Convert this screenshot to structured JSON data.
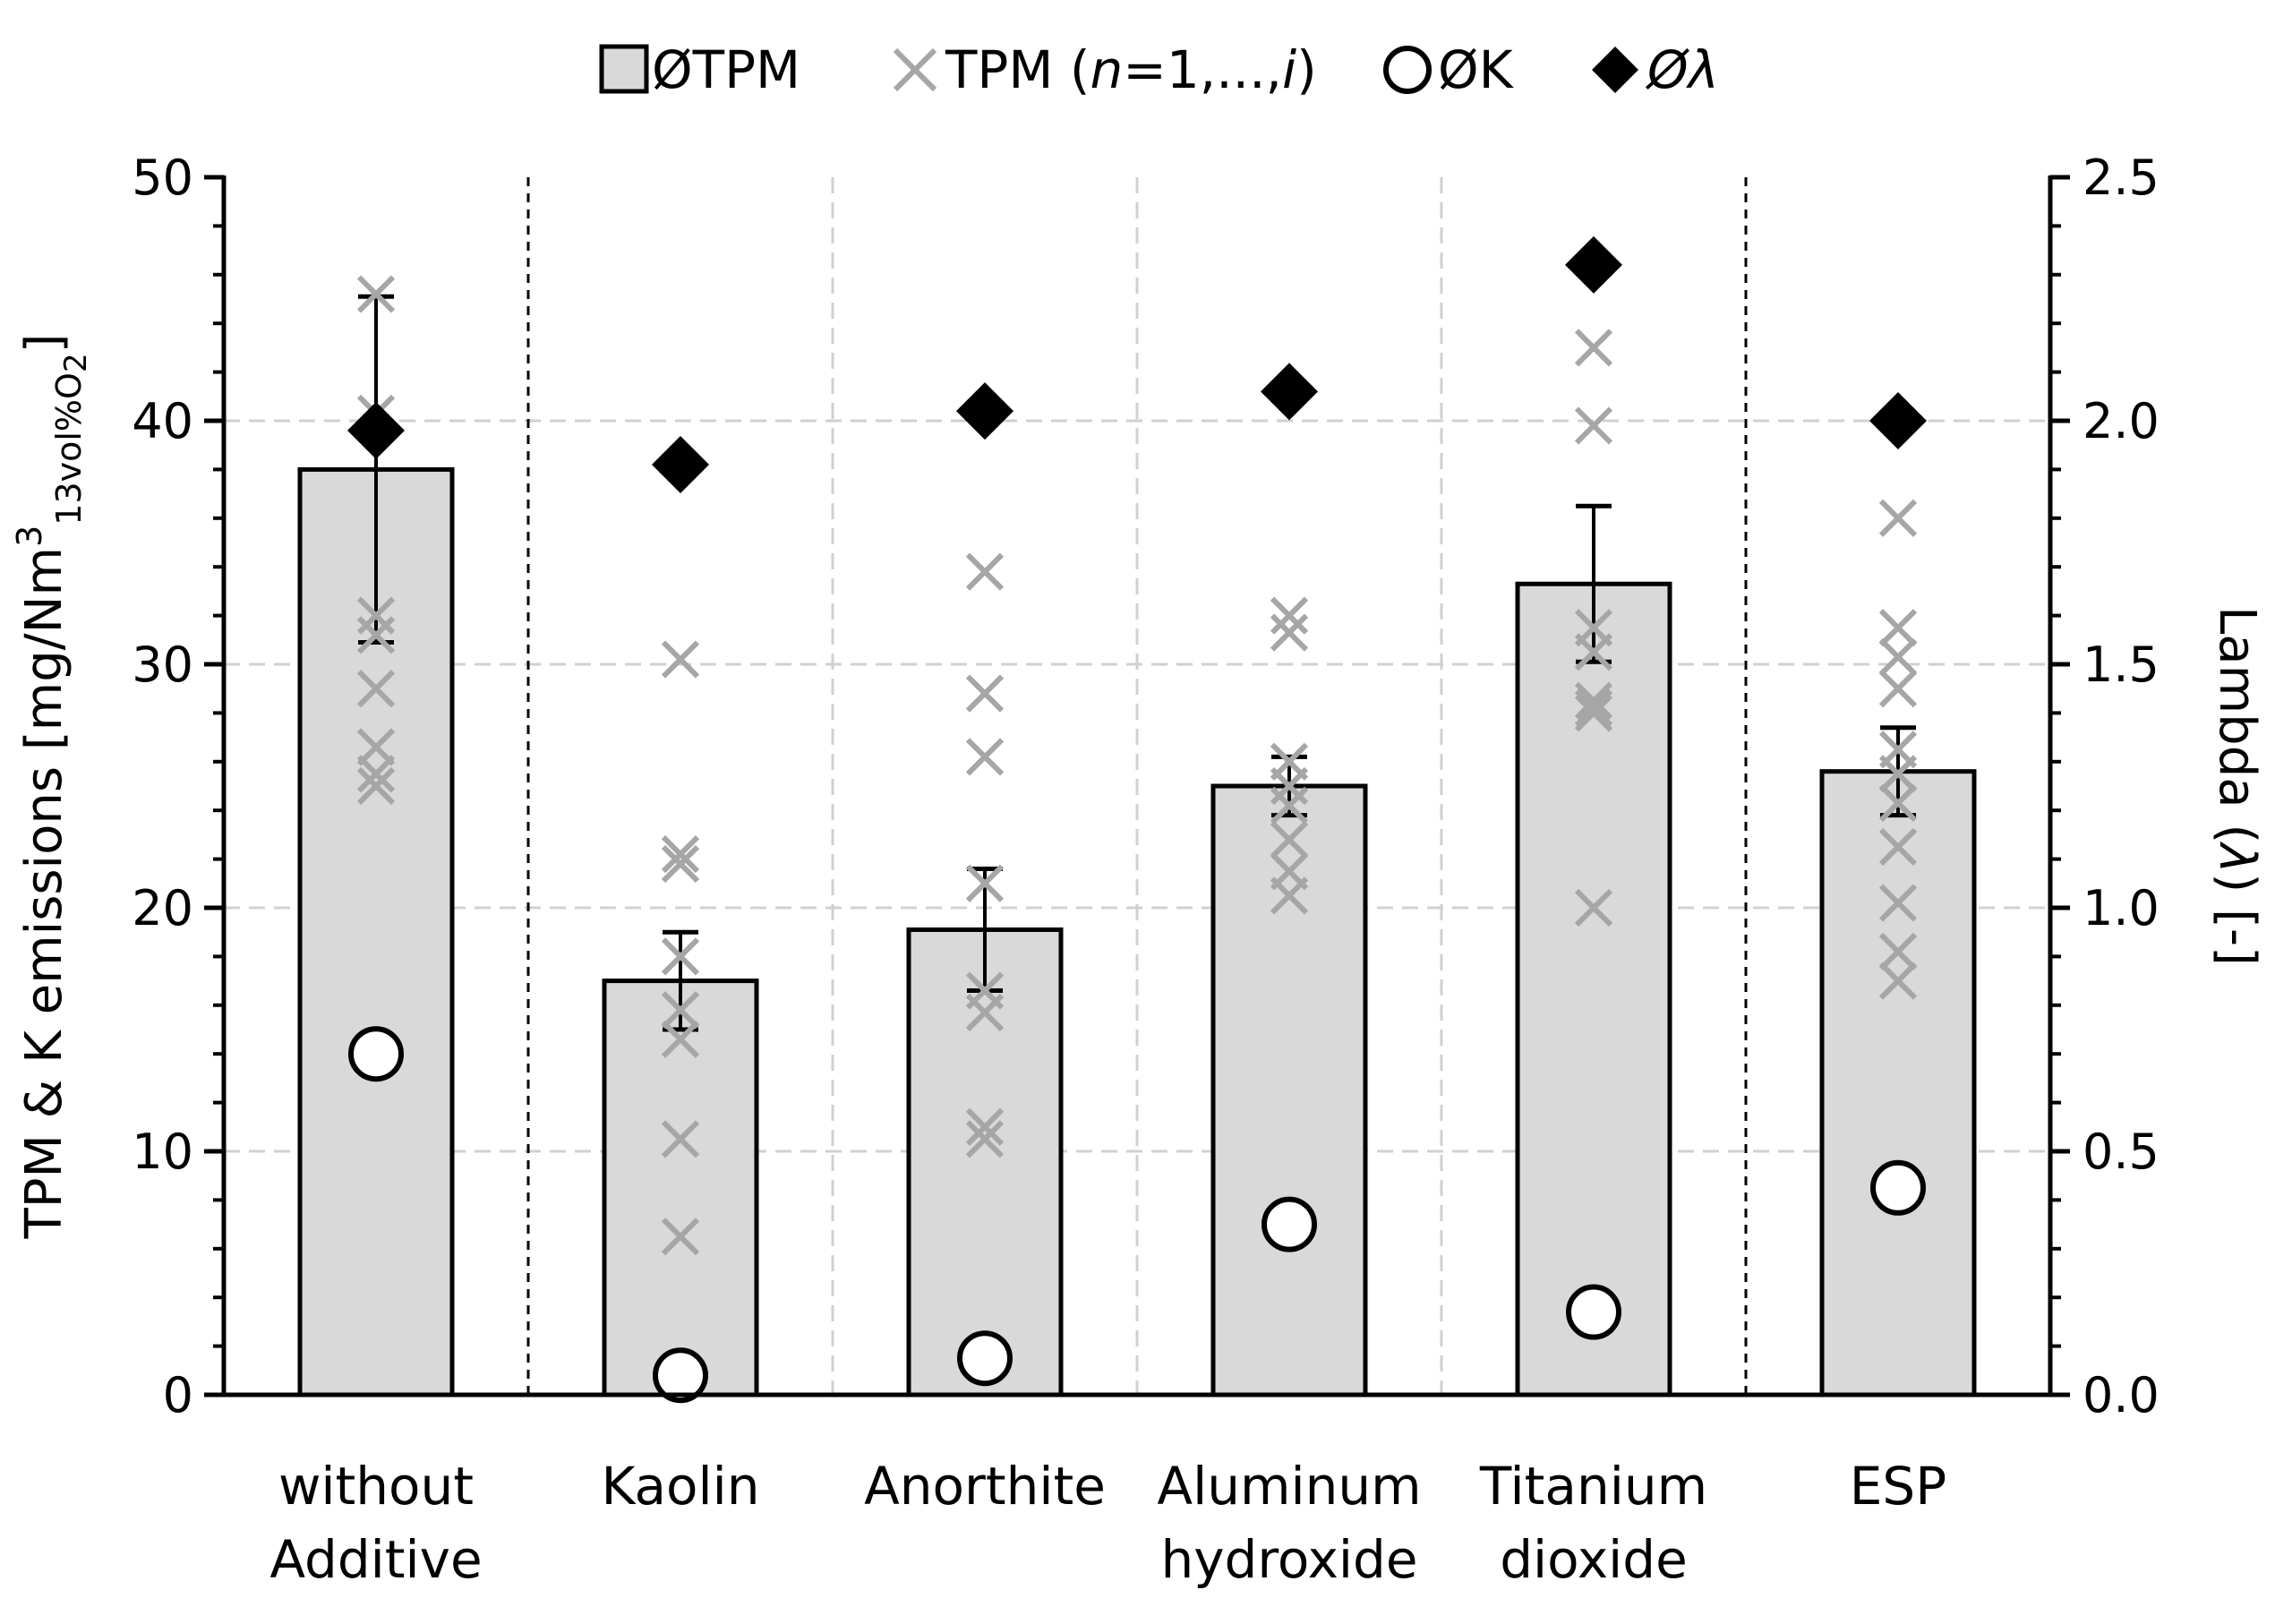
{
  "chart_data": {
    "type": "bar",
    "categories": [
      [
        "without",
        "Additive"
      ],
      [
        "Kaolin"
      ],
      [
        "Anorthite"
      ],
      [
        "Aluminum",
        "hydroxide"
      ],
      [
        "Titanium",
        "dioxide"
      ],
      [
        "ESP"
      ]
    ],
    "legend": {
      "placement": "top",
      "entries": [
        {
          "key": "tpm_mean",
          "parts": [
            "ØTPM"
          ]
        },
        {
          "key": "tpm_runs",
          "parts": [
            "TPM (",
            "n",
            "=1,...,",
            "i",
            ")"
          ]
        },
        {
          "key": "k_mean",
          "parts": [
            "ØK"
          ]
        },
        {
          "key": "lambda_mean",
          "parts": [
            "Ø",
            "λ"
          ]
        }
      ]
    },
    "y_left": {
      "label_parts": [
        "TPM & K emissions [mg/Nm",
        "3",
        "13vol%O",
        "2",
        "]"
      ],
      "lim": [
        0,
        50
      ],
      "ticks": [
        "0",
        "10",
        "20",
        "30",
        "40",
        "50"
      ]
    },
    "y_right": {
      "label_parts": [
        "Lambda (",
        "λ",
        ") [-]"
      ],
      "lim": [
        0,
        2.5
      ],
      "ticks": [
        "0.0",
        "0.5",
        "1.0",
        "1.5",
        "2.0",
        "2.5"
      ]
    },
    "grid": true,
    "separators_after_category": [
      0,
      4
    ],
    "series": [
      {
        "key": "tpm_mean",
        "axis": "left",
        "kind": "bar",
        "values": [
          38.0,
          17.0,
          19.1,
          25.0,
          33.3,
          25.6
        ],
        "error": [
          7.1,
          2.0,
          2.5,
          1.2,
          3.2,
          1.8
        ]
      },
      {
        "key": "tpm_runs",
        "axis": "left",
        "kind": "x-marker",
        "values": [
          [
            45.2,
            40.3,
            32.0,
            31.2,
            29.0,
            26.6,
            25.5,
            25.0
          ],
          [
            30.2,
            22.2,
            21.8,
            18.0,
            15.8,
            14.6,
            10.5,
            6.5
          ],
          [
            33.8,
            28.8,
            26.2,
            21.0,
            16.6,
            15.7,
            11.0,
            10.5
          ],
          [
            32.0,
            31.3,
            26.0,
            25.0,
            24.2,
            22.8,
            21.5,
            20.5
          ],
          [
            43.0,
            39.8,
            31.5,
            30.5,
            28.5,
            28.2,
            28.0,
            20.0
          ],
          [
            36.0,
            31.5,
            30.3,
            29.0,
            26.5,
            25.5,
            24.3,
            22.5,
            20.2,
            18.2,
            17.0
          ]
        ]
      },
      {
        "key": "k_mean",
        "axis": "left",
        "kind": "circle",
        "values": [
          14.0,
          0.8,
          1.5,
          7.0,
          3.4,
          8.5
        ]
      },
      {
        "key": "lambda_mean",
        "axis": "right",
        "kind": "diamond",
        "values": [
          1.98,
          1.91,
          2.02,
          2.06,
          2.32,
          2.0
        ]
      }
    ],
    "colors": {
      "bar_fill": "#d9d9d9",
      "bar_stroke": "#000000",
      "runs_marker": "#a6a6a6",
      "grid": "#d0d0d0",
      "axis": "#000000"
    }
  }
}
